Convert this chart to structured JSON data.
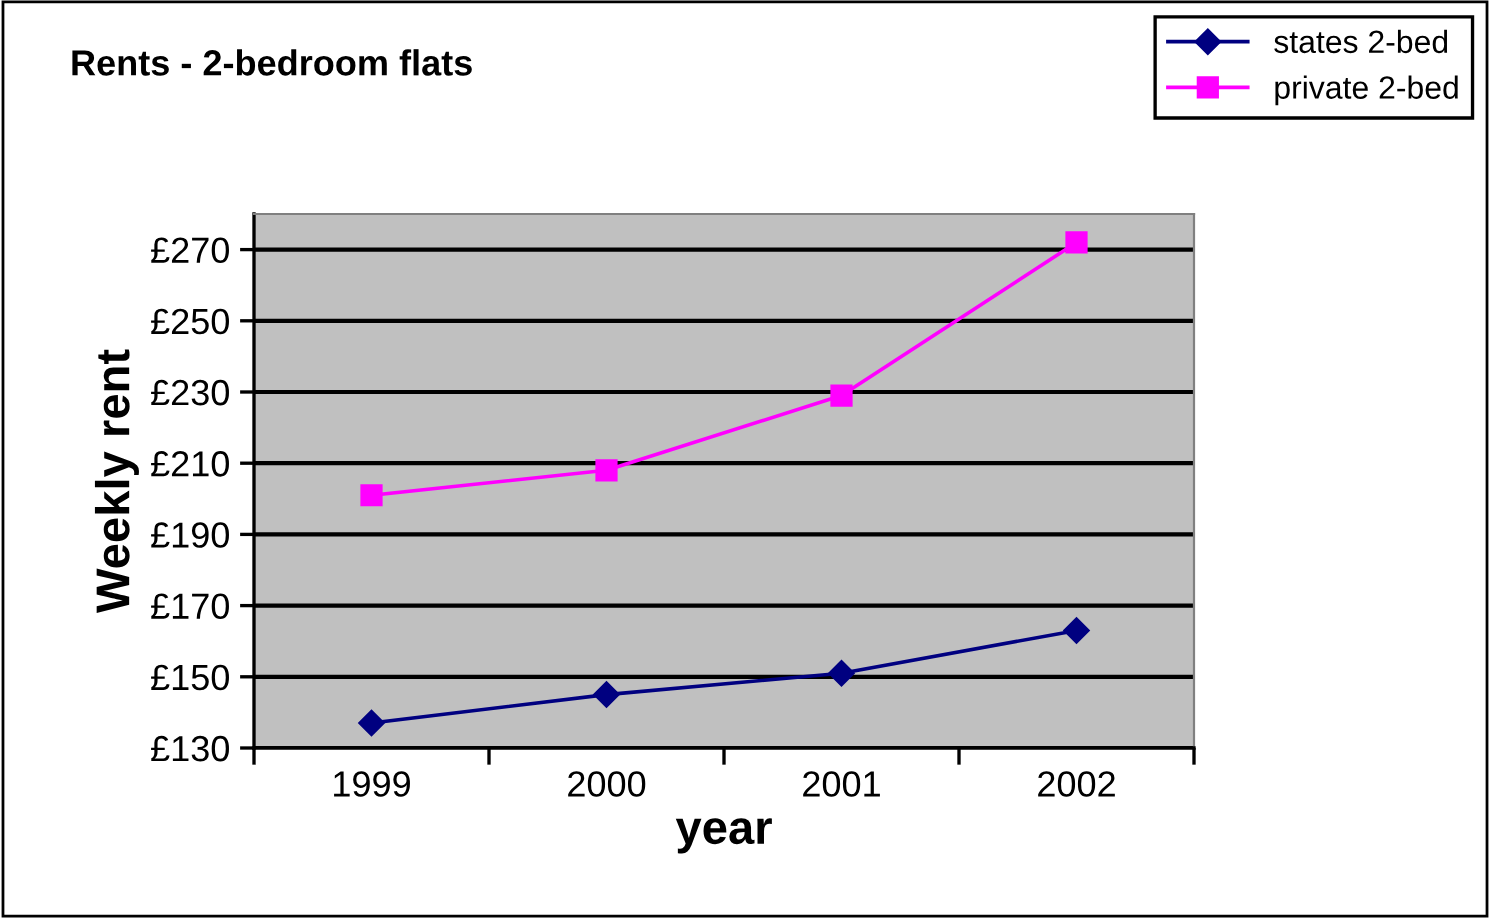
{
  "chart_data": {
    "type": "line",
    "title": "Rents - 2-bedroom flats",
    "xlabel": "year",
    "ylabel": "Weekly rent",
    "categories": [
      "1999",
      "2000",
      "2001",
      "2002"
    ],
    "series": [
      {
        "name": "states 2-bed",
        "color": "#000080",
        "marker": "diamond",
        "values": [
          137,
          145,
          151,
          163
        ]
      },
      {
        "name": "private 2-bed",
        "color": "#ff00ff",
        "marker": "square",
        "values": [
          201,
          208,
          229,
          272
        ]
      }
    ],
    "ylim": [
      130,
      280
    ],
    "yticks": [
      {
        "value": 130,
        "label": "£130"
      },
      {
        "value": 150,
        "label": "£150"
      },
      {
        "value": 170,
        "label": "£170"
      },
      {
        "value": 190,
        "label": "£190"
      },
      {
        "value": 210,
        "label": "£210"
      },
      {
        "value": 230,
        "label": "£230"
      },
      {
        "value": 250,
        "label": "£250"
      },
      {
        "value": 270,
        "label": "£270"
      }
    ],
    "grid": "y",
    "legend": "top right",
    "line_style": "solid"
  }
}
